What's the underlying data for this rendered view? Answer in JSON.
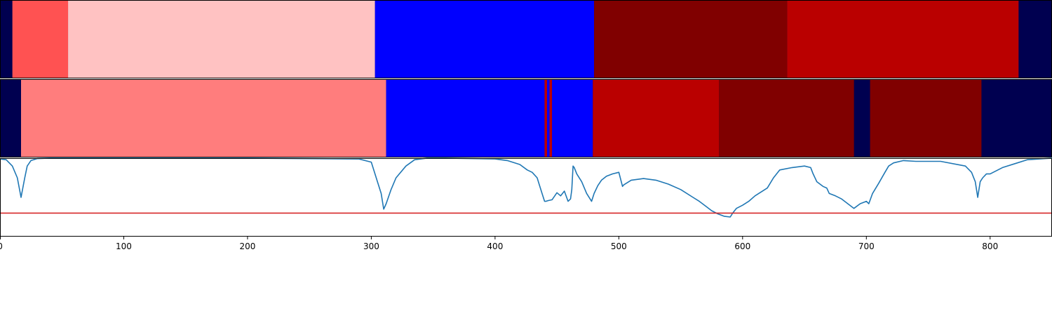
{
  "chart_data": {
    "type": "heatmap",
    "xlim": [
      0,
      850
    ],
    "x_ticks": [
      0,
      100,
      200,
      300,
      400,
      500,
      600,
      700,
      800
    ],
    "tick_labels": [
      "0",
      "100",
      "200",
      "300",
      "400",
      "500",
      "600",
      "700",
      "800"
    ],
    "colors": {
      "background": "#000050",
      "segment_line": "#1f77b4",
      "threshold": "#d62728",
      "border": "#000000"
    },
    "tracks": [
      {
        "segments": [
          {
            "start": 10,
            "end": 55,
            "color": "#ff5252"
          },
          {
            "start": 55,
            "end": 303,
            "color": "#ffc2c2"
          },
          {
            "start": 303,
            "end": 480,
            "color": "#0000ff"
          },
          {
            "start": 480,
            "end": 636,
            "color": "#800000"
          },
          {
            "start": 636,
            "end": 823,
            "color": "#ba0000"
          }
        ]
      },
      {
        "segments": [
          {
            "start": 17,
            "end": 312,
            "color": "#ff7d7d"
          },
          {
            "start": 312,
            "end": 479,
            "color": "#0000ff"
          },
          {
            "start": 440,
            "end": 442,
            "color": "#ba0000"
          },
          {
            "start": 444,
            "end": 446,
            "color": "#ba0000"
          },
          {
            "start": 479,
            "end": 581,
            "color": "#ba0000"
          },
          {
            "start": 581,
            "end": 690,
            "color": "#800000"
          },
          {
            "start": 703,
            "end": 793,
            "color": "#800000"
          }
        ]
      }
    ],
    "line": {
      "ylim": [
        0,
        1
      ],
      "threshold": 0.3,
      "x": [
        0,
        5,
        10,
        14,
        17,
        20,
        22,
        25,
        30,
        40,
        60,
        100,
        200,
        290,
        300,
        305,
        308,
        310,
        312,
        316,
        320,
        328,
        335,
        345,
        360,
        400,
        410,
        420,
        426,
        430,
        434,
        436,
        438,
        440,
        441,
        443,
        446,
        450,
        453,
        456,
        459,
        461,
        462,
        463,
        464,
        466,
        470,
        474,
        478,
        480,
        483,
        486,
        490,
        495,
        500,
        503,
        504,
        510,
        520,
        530,
        540,
        550,
        560,
        565,
        570,
        575,
        580,
        585,
        590,
        592,
        595,
        600,
        605,
        610,
        620,
        625,
        630,
        640,
        650,
        655,
        657,
        660,
        665,
        668,
        670,
        675,
        680,
        685,
        690,
        695,
        700,
        702,
        705,
        710,
        715,
        718,
        722,
        730,
        740,
        760,
        780,
        785,
        788,
        790,
        792,
        794,
        797,
        800,
        810,
        820,
        830,
        850
      ],
      "y": [
        0.99,
        0.98,
        0.9,
        0.75,
        0.5,
        0.75,
        0.9,
        0.97,
        0.995,
        1.0,
        1.0,
        1.0,
        1.0,
        0.99,
        0.95,
        0.7,
        0.55,
        0.35,
        0.42,
        0.6,
        0.75,
        0.9,
        0.98,
        1.0,
        1.0,
        0.99,
        0.97,
        0.92,
        0.85,
        0.82,
        0.75,
        0.65,
        0.55,
        0.45,
        0.45,
        0.46,
        0.47,
        0.56,
        0.52,
        0.58,
        0.45,
        0.48,
        0.6,
        0.9,
        0.88,
        0.8,
        0.7,
        0.55,
        0.45,
        0.55,
        0.65,
        0.72,
        0.77,
        0.8,
        0.82,
        0.64,
        0.66,
        0.72,
        0.74,
        0.72,
        0.67,
        0.6,
        0.5,
        0.45,
        0.39,
        0.33,
        0.29,
        0.26,
        0.25,
        0.3,
        0.36,
        0.4,
        0.45,
        0.52,
        0.62,
        0.75,
        0.85,
        0.88,
        0.9,
        0.88,
        0.8,
        0.7,
        0.64,
        0.62,
        0.55,
        0.52,
        0.48,
        0.42,
        0.36,
        0.42,
        0.45,
        0.42,
        0.55,
        0.68,
        0.82,
        0.9,
        0.94,
        0.97,
        0.96,
        0.96,
        0.9,
        0.82,
        0.7,
        0.5,
        0.7,
        0.75,
        0.8,
        0.8,
        0.88,
        0.93,
        0.98,
        1.0
      ]
    }
  }
}
